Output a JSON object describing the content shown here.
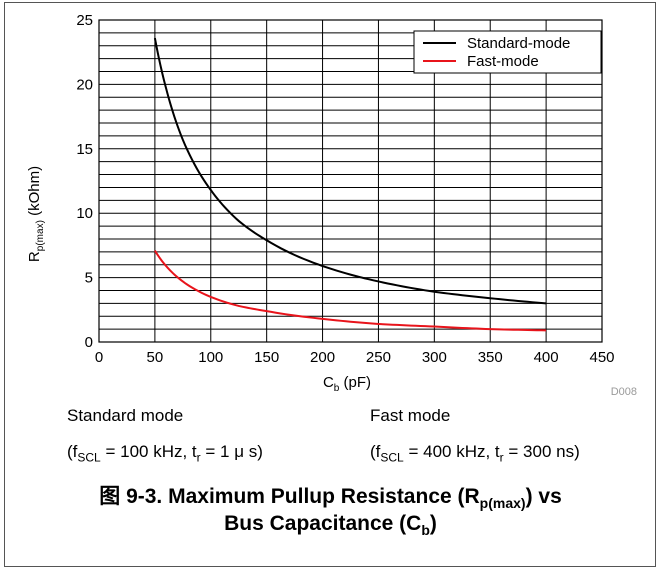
{
  "chart_data": {
    "type": "line",
    "xlabel": {
      "main": "C",
      "sub": "b",
      "unit": " (pF)"
    },
    "ylabel": {
      "main": "R",
      "sub": "p(max)",
      "unit": " (kOhm)"
    },
    "xlim": [
      0,
      450
    ],
    "ylim": [
      0,
      25
    ],
    "xticks": [
      "0",
      "50",
      "100",
      "150",
      "200",
      "250",
      "300",
      "350",
      "400",
      "450"
    ],
    "yticks": [
      "0",
      "5",
      "10",
      "15",
      "20",
      "25"
    ],
    "grid": true,
    "legend_position": "top-right",
    "watermark": "D008",
    "series": [
      {
        "name": "Standard-mode",
        "color": "#000000",
        "x": [
          50,
          60,
          75,
          100,
          125,
          150,
          200,
          250,
          300,
          350,
          400
        ],
        "y": [
          23.6,
          19.7,
          15.7,
          11.8,
          9.4,
          7.9,
          5.9,
          4.7,
          3.9,
          3.4,
          3.0
        ]
      },
      {
        "name": "Fast-mode",
        "color": "#e8141b",
        "x": [
          50,
          60,
          75,
          100,
          125,
          150,
          200,
          250,
          300,
          350,
          400
        ],
        "y": [
          7.1,
          5.9,
          4.7,
          3.5,
          2.8,
          2.4,
          1.8,
          1.4,
          1.2,
          1.0,
          0.9
        ]
      }
    ]
  },
  "conditions": {
    "standard": {
      "heading": "Standard mode",
      "open": "(f",
      "sub1": "SCL",
      "mid": " = 100 kHz, t",
      "sub2": "r",
      "close": " = 1  μ s)"
    },
    "fast": {
      "heading": "Fast mode",
      "open": "(f",
      "sub1": "SCL",
      "mid": " = 400 kHz, t",
      "sub2": "r",
      "close": " = 300 ns)"
    }
  },
  "figure_title": {
    "line1_prefix": "图 9-3. Maximum Pullup Resistance (R",
    "line1_sub": "p(max)",
    "line1_suffix": ") vs",
    "line2_prefix": "Bus Capacitance (C",
    "line2_sub": "b",
    "line2_suffix": ")"
  }
}
